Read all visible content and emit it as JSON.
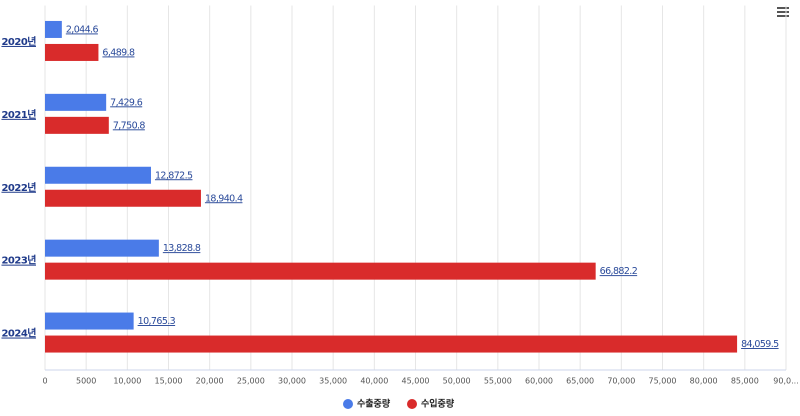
{
  "chart_data": {
    "type": "hbar",
    "categories": [
      "2020년",
      "2021년",
      "2022년",
      "2023년",
      "2024년"
    ],
    "series": [
      {
        "name": "수출중량",
        "color": "#4a7be8",
        "values": [
          2044.6,
          7429.6,
          12872.5,
          13828.8,
          10765.3
        ],
        "value_labels": [
          "2,044.6",
          "7,429.6",
          "12,872.5",
          "13,828.8",
          "10,765.3"
        ]
      },
      {
        "name": "수입중량",
        "color": "#d92b2b",
        "values": [
          6489.8,
          7750.8,
          18940.4,
          66882.2,
          84059.5
        ],
        "value_labels": [
          "6,489.8",
          "7,750.8",
          "18,940.4",
          "66,882.2",
          "84,059.5"
        ]
      }
    ],
    "xlim": [
      0,
      90000
    ],
    "xticks": [
      0,
      5000,
      {
        "value": 10000,
        "label": "10,000"
      },
      {
        "value": 15000,
        "label": "15,000"
      },
      {
        "value": 20000,
        "label": "20,000"
      },
      {
        "value": 25000,
        "label": "25,000"
      },
      {
        "value": 30000,
        "label": "30,000"
      },
      {
        "value": 35000,
        "label": "35,000"
      },
      {
        "value": 40000,
        "label": "40,000"
      },
      {
        "value": 45000,
        "label": "45,000"
      },
      {
        "value": 50000,
        "label": "50,000"
      },
      {
        "value": 55000,
        "label": "55,000"
      },
      {
        "value": 60000,
        "label": "60,000"
      },
      {
        "value": 65000,
        "label": "65,000"
      },
      {
        "value": 70000,
        "label": "70,000"
      },
      {
        "value": 75000,
        "label": "75,000"
      },
      {
        "value": 80000,
        "label": "80,000"
      },
      {
        "value": 85000,
        "label": "85,000"
      },
      {
        "value": 90000,
        "label": "90,0..."
      }
    ],
    "grid": true
  }
}
